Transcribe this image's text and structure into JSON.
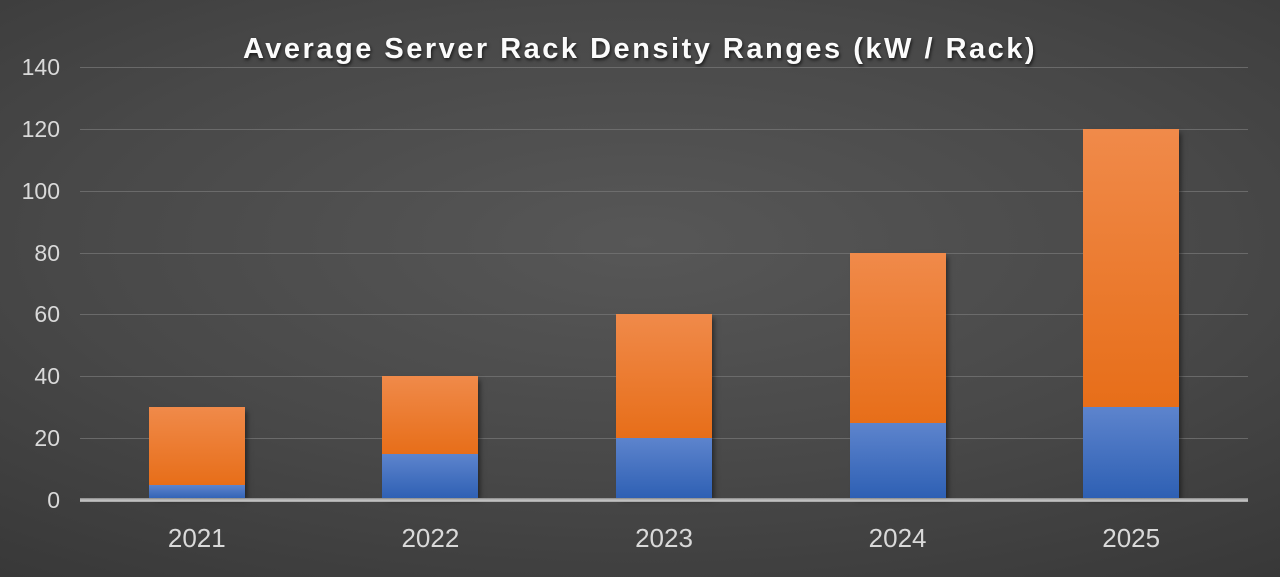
{
  "chart_data": {
    "type": "bar",
    "variant": "stacked-column",
    "title": "Average Server Rack Density Ranges (kW / Rack)",
    "categories": [
      "2021",
      "2022",
      "2023",
      "2024",
      "2025"
    ],
    "series": [
      {
        "name": "lower-range-blue-segment",
        "values": [
          5,
          15,
          20,
          25,
          30
        ]
      },
      {
        "name": "upper-range-orange-segment",
        "values": [
          25,
          25,
          40,
          55,
          90
        ]
      }
    ],
    "stack_totals": [
      30,
      40,
      60,
      80,
      120
    ],
    "xlabel": "",
    "ylabel": "",
    "ylim": [
      0,
      140
    ],
    "yticks": [
      0,
      20,
      40,
      60,
      80,
      100,
      120,
      140
    ],
    "grid": true,
    "legend": false
  },
  "colors": {
    "blue-top": "#5d84cd",
    "blue-bottom": "#2d5fb3",
    "orange-top": "#f08a4a",
    "orange-bottom": "#e76e19",
    "gridline": "#757575",
    "axis-line": "#b5b5b5",
    "tick-label": "#d9d9d9",
    "title-color": "#fbfbfb",
    "bg-center": "#575757",
    "bg-edge": "#232323"
  }
}
